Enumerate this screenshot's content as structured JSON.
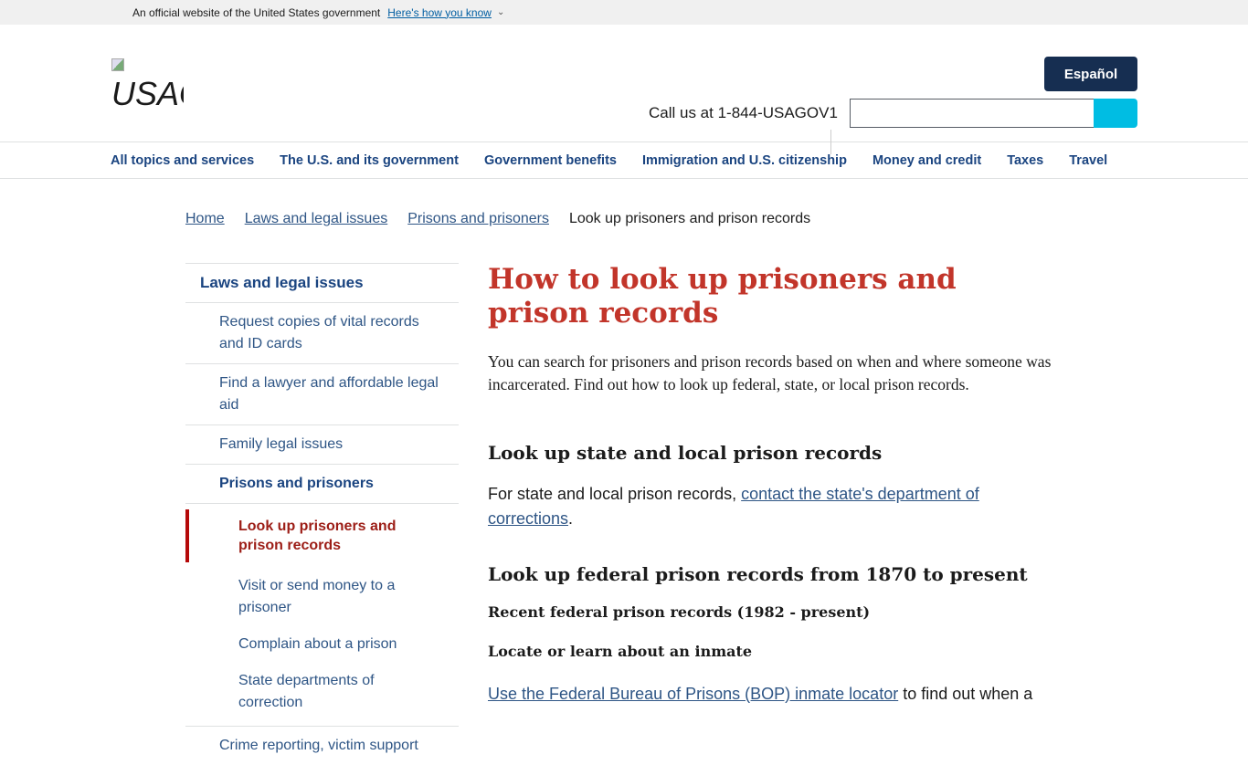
{
  "banner": {
    "text": "An official website of the United States government",
    "how": "Here's how you know"
  },
  "header": {
    "logo_alt": "USAGOV",
    "espanol": "Español",
    "call": "Call us at 1-844-USAGOV1",
    "search_placeholder": ""
  },
  "nav": [
    "All topics and services",
    "The U.S. and its government",
    "Government benefits",
    "Immigration and U.S. citizenship",
    "Money and credit",
    "Taxes",
    "Travel"
  ],
  "breadcrumb": {
    "items": [
      "Home",
      "Laws and legal issues",
      "Prisons and prisoners"
    ],
    "current": "Look up prisoners and prison records"
  },
  "sidebar": {
    "top": "Laws and legal issues",
    "l2": [
      "Request copies of vital records and ID cards",
      "Find a lawyer and affordable legal aid",
      "Family legal issues"
    ],
    "section": "Prisons and prisoners",
    "active": "Look up prisoners and prison records",
    "l3": [
      "Visit or send money to a prisoner",
      "Complain about a prison",
      "State departments of correction"
    ],
    "next": "Crime reporting, victim support"
  },
  "main": {
    "title": "How to look up prisoners and prison records",
    "intro": "You can search for prisoners and prison records based on when and where someone was incarcerated. Find out how to look up federal, state, or local prison records.",
    "h2a": "Look up state and local prison records",
    "p1_pre": "For state and local prison records, ",
    "p1_link": "contact the state's department of corrections",
    "p1_post": ".",
    "h2b": "Look up federal prison records from 1870 to present",
    "h3a": "Recent federal prison records (1982 - present)",
    "h3b": "Locate or learn about an inmate",
    "p2_link": "Use the Federal Bureau of Prisons (BOP) inmate locator",
    "p2_post": " to find out when a"
  },
  "colors": {
    "title": "#c2352a",
    "nav": "#1a4480",
    "espanol_bg": "#162e51",
    "search_btn": "#00bde3",
    "active_border": "#b50909"
  }
}
